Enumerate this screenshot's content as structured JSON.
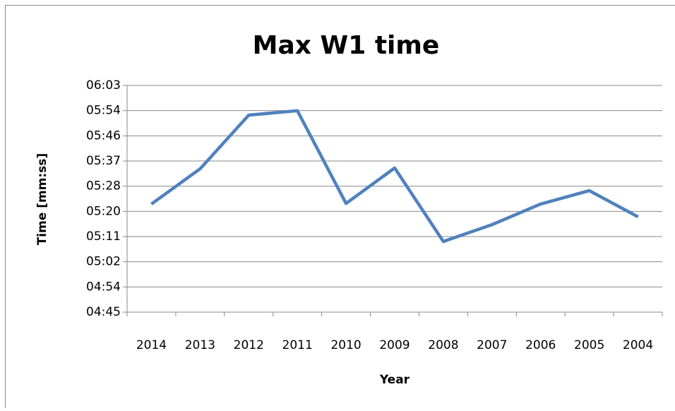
{
  "chart_data": {
    "type": "line",
    "title": "Max W1 time",
    "x_label": "Year",
    "y_label": "Time [mm:ss]",
    "categories": [
      "2014",
      "2013",
      "2012",
      "2011",
      "2010",
      "2009",
      "2008",
      "2007",
      "2006",
      "2005",
      "2004"
    ],
    "series": [
      {
        "name": "Max W1 time",
        "color": "#4f81bd",
        "values": [
          322.2,
          334.3,
          352.8,
          354.3,
          322.4,
          334.6,
          309.3,
          315.1,
          322.2,
          326.8,
          317.8
        ]
      }
    ],
    "ylim": [
      285,
      363
    ],
    "yticks": [
      {
        "value": 285,
        "label": "04:45"
      },
      {
        "value": 293.67,
        "label": "04:54"
      },
      {
        "value": 302.33,
        "label": "05:02"
      },
      {
        "value": 311,
        "label": "05:11"
      },
      {
        "value": 319.67,
        "label": "05:20"
      },
      {
        "value": 328.33,
        "label": "05:28"
      },
      {
        "value": 337,
        "label": "05:37"
      },
      {
        "value": 345.67,
        "label": "05:46"
      },
      {
        "value": 354.33,
        "label": "05:54"
      },
      {
        "value": 363,
        "label": "06:03"
      }
    ],
    "grid": true
  }
}
